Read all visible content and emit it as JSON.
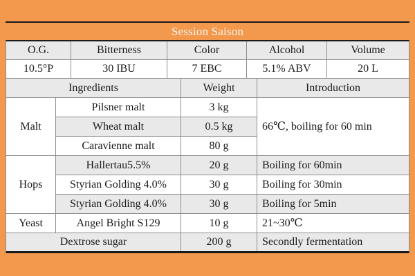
{
  "recipe": {
    "title": "Session Saison",
    "stats": {
      "headers": [
        "O.G.",
        "Bitterness",
        "Color",
        "Alcohol",
        "Volume"
      ],
      "values": [
        "10.5°P",
        "30 IBU",
        "7 EBC",
        "5.1% ABV",
        "20 L"
      ]
    },
    "columns": {
      "ingredients": "Ingredients",
      "weight": "Weight",
      "introduction": "Introduction"
    },
    "malt": {
      "label": "Malt",
      "intro": "66℃, boiling for 60 min",
      "rows": [
        {
          "name": "Pilsner malt",
          "weight": "3 kg"
        },
        {
          "name": "Wheat malt",
          "weight": "0.5 kg"
        },
        {
          "name": "Caravienne malt",
          "weight": "80 g"
        }
      ]
    },
    "hops": {
      "label": "Hops",
      "rows": [
        {
          "name": "Hallertau5.5%",
          "weight": "20 g",
          "intro": "Boiling for 60min"
        },
        {
          "name": "Styrian Golding 4.0%",
          "weight": "30 g",
          "intro": "Boiling for 30min"
        },
        {
          "name": "Styrian Golding 4.0%",
          "weight": "30 g",
          "intro": "Boiling for 5min"
        }
      ]
    },
    "yeast": {
      "label": "Yeast",
      "name": "Angel Bright S129",
      "weight": "10 g",
      "intro": "21~30℃"
    },
    "sugar": {
      "name": "Dextrose sugar",
      "weight": "200 g",
      "intro": "Secondly fermentation"
    },
    "colors": {
      "page_background": "#F2994E",
      "stripe": "#E9E9E9",
      "grid_border": "#8C8C8C",
      "rule": "#1A1A1A",
      "title_text": "#FCF5EC"
    }
  }
}
